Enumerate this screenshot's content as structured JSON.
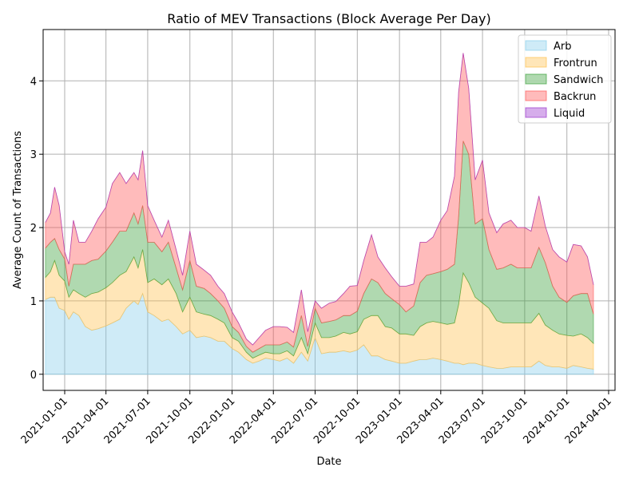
{
  "chart_data": {
    "type": "area",
    "stacked": true,
    "title": "Ratio of MEV Transactions (Block Average Per Day)",
    "xlabel": "Date",
    "ylabel": "Average Count of Transactions",
    "xlim": [
      "2020-11-15",
      "2024-04-15"
    ],
    "ylim": [
      -0.22,
      4.7
    ],
    "x_ticks": [
      "2021-01-01",
      "2021-04-01",
      "2021-07-01",
      "2021-10-01",
      "2022-01-01",
      "2022-04-01",
      "2022-07-01",
      "2022-10-01",
      "2023-01-01",
      "2023-04-01",
      "2023-07-01",
      "2023-10-01",
      "2024-01-01",
      "2024-04-01"
    ],
    "y_ticks": [
      0,
      1,
      2,
      3,
      4
    ],
    "grid": true,
    "legend_position": "top-right",
    "x": [
      "2020-11-20",
      "2020-12-01",
      "2020-12-10",
      "2020-12-20",
      "2021-01-01",
      "2021-01-10",
      "2021-01-20",
      "2021-02-01",
      "2021-02-15",
      "2021-03-01",
      "2021-03-15",
      "2021-04-01",
      "2021-04-15",
      "2021-05-01",
      "2021-05-15",
      "2021-06-01",
      "2021-06-10",
      "2021-06-20",
      "2021-07-01",
      "2021-07-15",
      "2021-08-01",
      "2021-08-15",
      "2021-09-01",
      "2021-09-15",
      "2021-10-01",
      "2021-10-15",
      "2021-11-01",
      "2021-11-15",
      "2021-12-01",
      "2021-12-15",
      "2022-01-01",
      "2022-01-15",
      "2022-02-01",
      "2022-02-15",
      "2022-03-01",
      "2022-03-15",
      "2022-04-01",
      "2022-04-15",
      "2022-05-01",
      "2022-05-15",
      "2022-06-01",
      "2022-06-15",
      "2022-07-01",
      "2022-07-15",
      "2022-08-01",
      "2022-08-15",
      "2022-09-01",
      "2022-09-15",
      "2022-10-01",
      "2022-10-15",
      "2022-11-01",
      "2022-11-15",
      "2022-12-01",
      "2022-12-15",
      "2023-01-01",
      "2023-01-15",
      "2023-02-01",
      "2023-02-15",
      "2023-03-01",
      "2023-03-15",
      "2023-04-01",
      "2023-04-15",
      "2023-05-01",
      "2023-05-10",
      "2023-05-20",
      "2023-06-01",
      "2023-06-15",
      "2023-07-01",
      "2023-07-15",
      "2023-08-01",
      "2023-08-15",
      "2023-09-01",
      "2023-09-15",
      "2023-10-01",
      "2023-10-15",
      "2023-11-01",
      "2023-11-15",
      "2023-12-01",
      "2023-12-15",
      "2024-01-01",
      "2024-01-15",
      "2024-02-01",
      "2024-02-15",
      "2024-02-28"
    ],
    "series": [
      {
        "name": "Arb",
        "color": "#87ceeb",
        "values": [
          1.02,
          1.05,
          1.05,
          0.9,
          0.87,
          0.75,
          0.85,
          0.8,
          0.65,
          0.6,
          0.62,
          0.66,
          0.7,
          0.75,
          0.9,
          1.0,
          0.95,
          1.1,
          0.85,
          0.8,
          0.72,
          0.75,
          0.65,
          0.55,
          0.6,
          0.5,
          0.52,
          0.5,
          0.45,
          0.45,
          0.35,
          0.3,
          0.2,
          0.15,
          0.18,
          0.22,
          0.2,
          0.18,
          0.22,
          0.15,
          0.3,
          0.18,
          0.5,
          0.28,
          0.3,
          0.3,
          0.32,
          0.3,
          0.33,
          0.4,
          0.25,
          0.25,
          0.2,
          0.18,
          0.15,
          0.15,
          0.18,
          0.2,
          0.2,
          0.22,
          0.2,
          0.18,
          0.15,
          0.15,
          0.13,
          0.15,
          0.15,
          0.12,
          0.1,
          0.08,
          0.08,
          0.1,
          0.1,
          0.1,
          0.1,
          0.18,
          0.12,
          0.1,
          0.1,
          0.08,
          0.12,
          0.1,
          0.08,
          0.07
        ]
      },
      {
        "name": "Frontrun",
        "color": "#ffc04d",
        "values": [
          0.3,
          0.35,
          0.5,
          0.45,
          0.4,
          0.3,
          0.3,
          0.3,
          0.4,
          0.5,
          0.5,
          0.52,
          0.55,
          0.6,
          0.5,
          0.6,
          0.5,
          0.6,
          0.4,
          0.5,
          0.5,
          0.55,
          0.45,
          0.3,
          0.45,
          0.35,
          0.3,
          0.3,
          0.3,
          0.25,
          0.15,
          0.15,
          0.1,
          0.07,
          0.08,
          0.08,
          0.08,
          0.1,
          0.1,
          0.1,
          0.2,
          0.1,
          0.2,
          0.22,
          0.2,
          0.22,
          0.25,
          0.25,
          0.25,
          0.35,
          0.55,
          0.55,
          0.45,
          0.45,
          0.4,
          0.4,
          0.35,
          0.45,
          0.5,
          0.5,
          0.5,
          0.5,
          0.55,
          0.8,
          1.25,
          1.1,
          0.9,
          0.85,
          0.8,
          0.65,
          0.62,
          0.6,
          0.6,
          0.6,
          0.6,
          0.65,
          0.55,
          0.5,
          0.45,
          0.45,
          0.4,
          0.45,
          0.42,
          0.35
        ]
      },
      {
        "name": "Sandwich",
        "color": "#3aa03a",
        "values": [
          0.4,
          0.4,
          0.3,
          0.35,
          0.3,
          0.15,
          0.35,
          0.4,
          0.45,
          0.45,
          0.45,
          0.5,
          0.55,
          0.6,
          0.55,
          0.6,
          0.6,
          0.6,
          0.55,
          0.5,
          0.45,
          0.5,
          0.35,
          0.3,
          0.5,
          0.35,
          0.35,
          0.3,
          0.25,
          0.2,
          0.15,
          0.12,
          0.08,
          0.08,
          0.09,
          0.1,
          0.12,
          0.12,
          0.12,
          0.12,
          0.3,
          0.1,
          0.2,
          0.2,
          0.22,
          0.22,
          0.23,
          0.25,
          0.28,
          0.35,
          0.5,
          0.45,
          0.45,
          0.4,
          0.4,
          0.3,
          0.4,
          0.6,
          0.65,
          0.65,
          0.7,
          0.75,
          0.8,
          1.2,
          1.8,
          1.75,
          1.0,
          1.15,
          0.8,
          0.7,
          0.75,
          0.8,
          0.75,
          0.75,
          0.75,
          0.9,
          0.85,
          0.6,
          0.5,
          0.45,
          0.55,
          0.55,
          0.6,
          0.4
        ]
      },
      {
        "name": "Backrun",
        "color": "#ff5555",
        "values": [
          0.35,
          0.4,
          0.7,
          0.6,
          0.1,
          0.3,
          0.6,
          0.3,
          0.3,
          0.4,
          0.55,
          0.6,
          0.8,
          0.8,
          0.65,
          0.55,
          0.6,
          0.75,
          0.5,
          0.3,
          0.2,
          0.3,
          0.25,
          0.2,
          0.4,
          0.3,
          0.25,
          0.25,
          0.2,
          0.2,
          0.2,
          0.13,
          0.1,
          0.1,
          0.15,
          0.2,
          0.25,
          0.25,
          0.2,
          0.2,
          0.35,
          0.2,
          0.1,
          0.2,
          0.25,
          0.25,
          0.3,
          0.4,
          0.35,
          0.45,
          0.6,
          0.35,
          0.35,
          0.3,
          0.25,
          0.35,
          0.3,
          0.55,
          0.45,
          0.5,
          0.7,
          0.8,
          1.2,
          1.7,
          1.2,
          0.9,
          0.6,
          0.8,
          0.5,
          0.5,
          0.6,
          0.6,
          0.55,
          0.55,
          0.5,
          0.7,
          0.5,
          0.5,
          0.55,
          0.55,
          0.7,
          0.65,
          0.5,
          0.4
        ]
      },
      {
        "name": "Liquid",
        "color": "#9932cc",
        "values": [
          0,
          0,
          0,
          0,
          0,
          0,
          0,
          0,
          0,
          0,
          0,
          0,
          0,
          0,
          0,
          0,
          0,
          0,
          0,
          0,
          0,
          0,
          0,
          0,
          0,
          0,
          0,
          0,
          0,
          0,
          0,
          0,
          0,
          0,
          0,
          0,
          0,
          0,
          0,
          0,
          0,
          0,
          0,
          0,
          0,
          0,
          0,
          0,
          0,
          0,
          0,
          0,
          0,
          0,
          0,
          0,
          0,
          0,
          0,
          0,
          0,
          0,
          0,
          0,
          0,
          0,
          0,
          0,
          0,
          0,
          0,
          0,
          0,
          0,
          0,
          0,
          0,
          0,
          0,
          0,
          0,
          0,
          0,
          0
        ]
      }
    ]
  }
}
